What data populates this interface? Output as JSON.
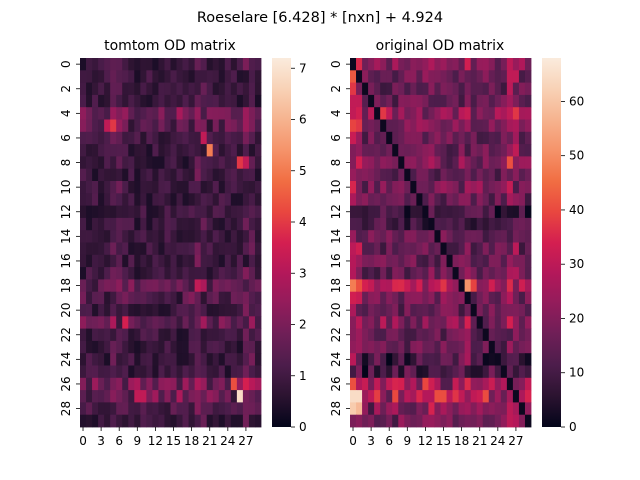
{
  "figure": {
    "suptitle": "Roeselare [6.428] * [nxn] + 4.924"
  },
  "colormap": {
    "name": "rocket",
    "stops": [
      "#03051a",
      "#2b1330",
      "#4c1d4b",
      "#6e1f57",
      "#921c5b",
      "#b3185a",
      "#d41f50",
      "#e9473f",
      "#f16e43",
      "#f5936a",
      "#f6b38f",
      "#f8d2b6",
      "#faebdd"
    ]
  },
  "chart_data": [
    {
      "type": "heatmap",
      "title": "tomtom OD matrix",
      "rows": 30,
      "cols": 30,
      "ytick_labels": [
        "0",
        "2",
        "4",
        "6",
        "8",
        "10",
        "12",
        "14",
        "16",
        "18",
        "20",
        "22",
        "24",
        "26",
        "28"
      ],
      "xtick_labels": [
        "0",
        "3",
        "6",
        "9",
        "12",
        "15",
        "18",
        "21",
        "24",
        "27"
      ],
      "colorbar": {
        "min": 0,
        "max": 7.2,
        "ticks": [
          "0",
          "1",
          "2",
          "3",
          "4",
          "5",
          "6",
          "7"
        ]
      },
      "grid": false
    },
    {
      "type": "heatmap",
      "title": "original OD matrix",
      "rows": 30,
      "cols": 30,
      "ytick_labels": [
        "0",
        "2",
        "4",
        "6",
        "8",
        "10",
        "12",
        "14",
        "16",
        "18",
        "20",
        "22",
        "24",
        "26",
        "28"
      ],
      "xtick_labels": [
        "0",
        "3",
        "6",
        "9",
        "12",
        "15",
        "18",
        "21",
        "24",
        "27"
      ],
      "colorbar": {
        "min": 0,
        "max": 68,
        "ticks": [
          "0",
          "10",
          "20",
          "30",
          "40",
          "50",
          "60"
        ]
      },
      "grid": false
    }
  ]
}
